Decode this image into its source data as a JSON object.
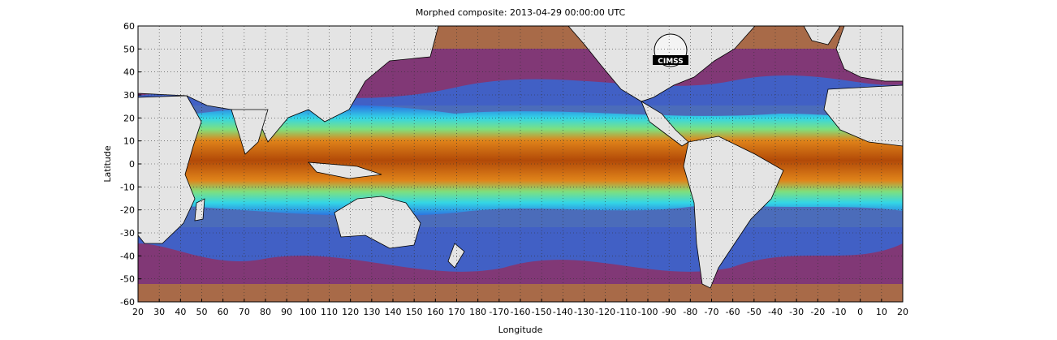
{
  "title": "Morphed composite: 2013-04-29 00:00:00 UTC",
  "xlabel": "Longitude",
  "ylabel": "Latitude",
  "logo_text": "CIMSS",
  "colors": {
    "land": "#e4e4e4",
    "dry": "#a86a48",
    "purple": "#7a2f7f",
    "blue": "#2c6de0",
    "cyan": "#33d6e6",
    "green": "#7ee07e",
    "orange": "#e0841a",
    "deep_orange": "#b24a08",
    "grid": "#333333"
  },
  "chart_data": {
    "type": "heatmap",
    "title": "Morphed composite: 2013-04-29 00:00:00 UTC",
    "xlabel": "Longitude",
    "ylabel": "Latitude",
    "xlim": [
      20,
      380
    ],
    "ylim": [
      -60,
      60
    ],
    "x_ticks": [
      "20",
      "30",
      "40",
      "50",
      "60",
      "70",
      "80",
      "90",
      "100",
      "110",
      "120",
      "130",
      "140",
      "150",
      "160",
      "170",
      "180",
      "-170",
      "-160",
      "-150",
      "-140",
      "-130",
      "-120",
      "-110",
      "-100",
      "-90",
      "-80",
      "-70",
      "-60",
      "-50",
      "-40",
      "-30",
      "-20",
      "-10",
      "0",
      "10",
      "20"
    ],
    "y_ticks": [
      "60",
      "50",
      "40",
      "30",
      "20",
      "10",
      "0",
      "-10",
      "-20",
      "-30",
      "-40",
      "-50",
      "-60"
    ],
    "grid": true,
    "legend": "none"
  }
}
